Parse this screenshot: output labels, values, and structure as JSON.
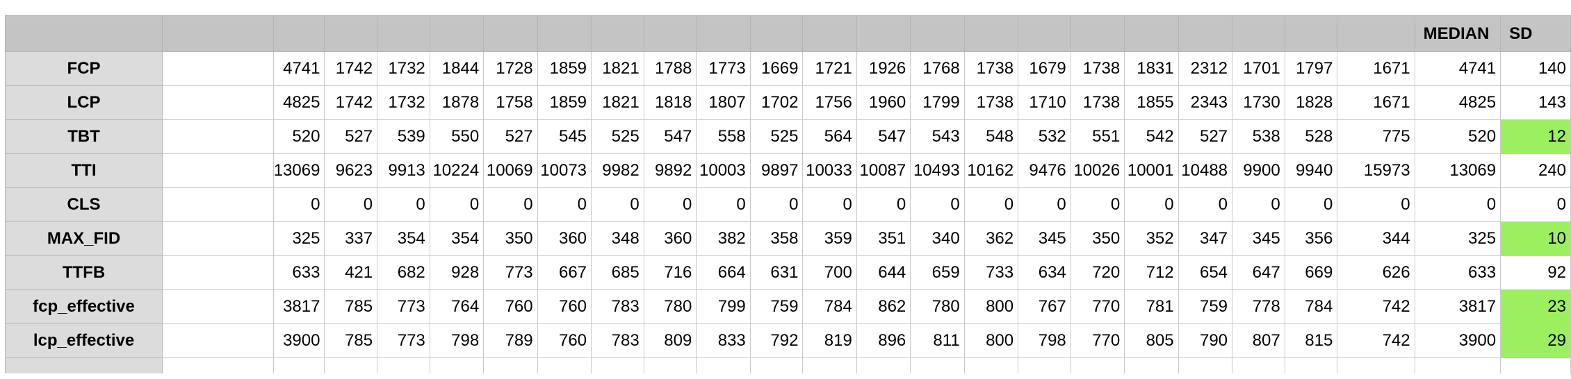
{
  "header": {
    "median_label": "MEDIAN",
    "sd_label": "SD"
  },
  "colors": {
    "header_bg": "#c4c4c4",
    "label_bg": "#dcdcdc",
    "highlight": "#9cf060",
    "grid": "#c8c8c8"
  },
  "rows": [
    {
      "label": "FCP",
      "values": [
        "4741",
        "1742",
        "1732",
        "1844",
        "1728",
        "1859",
        "1821",
        "1788",
        "1773",
        "1669",
        "1721",
        "1926",
        "1768",
        "1738",
        "1679",
        "1738",
        "1831",
        "2312",
        "1701",
        "1797",
        "1671"
      ],
      "median": "4741",
      "sd": "140",
      "sd_highlight": false
    },
    {
      "label": "LCP",
      "values": [
        "4825",
        "1742",
        "1732",
        "1878",
        "1758",
        "1859",
        "1821",
        "1818",
        "1807",
        "1702",
        "1756",
        "1960",
        "1799",
        "1738",
        "1710",
        "1738",
        "1855",
        "2343",
        "1730",
        "1828",
        "1671"
      ],
      "median": "4825",
      "sd": "143",
      "sd_highlight": false
    },
    {
      "label": "TBT",
      "values": [
        "520",
        "527",
        "539",
        "550",
        "527",
        "545",
        "525",
        "547",
        "558",
        "525",
        "564",
        "547",
        "543",
        "548",
        "532",
        "551",
        "542",
        "527",
        "538",
        "528",
        "775"
      ],
      "median": "520",
      "sd": "12",
      "sd_highlight": true
    },
    {
      "label": "TTI",
      "values": [
        "13069",
        "9623",
        "9913",
        "10224",
        "10069",
        "10073",
        "9982",
        "9892",
        "10003",
        "9897",
        "10033",
        "10087",
        "10493",
        "10162",
        "9476",
        "10026",
        "10001",
        "10488",
        "9900",
        "9940",
        "15973"
      ],
      "median": "13069",
      "sd": "240",
      "sd_highlight": false
    },
    {
      "label": "CLS",
      "values": [
        "0",
        "0",
        "0",
        "0",
        "0",
        "0",
        "0",
        "0",
        "0",
        "0",
        "0",
        "0",
        "0",
        "0",
        "0",
        "0",
        "0",
        "0",
        "0",
        "0",
        "0"
      ],
      "median": "0",
      "sd": "0",
      "sd_highlight": false
    },
    {
      "label": "MAX_FID",
      "values": [
        "325",
        "337",
        "354",
        "354",
        "350",
        "360",
        "348",
        "360",
        "382",
        "358",
        "359",
        "351",
        "340",
        "362",
        "345",
        "350",
        "352",
        "347",
        "345",
        "356",
        "344"
      ],
      "median": "325",
      "sd": "10",
      "sd_highlight": true
    },
    {
      "label": "TTFB",
      "values": [
        "633",
        "421",
        "682",
        "928",
        "773",
        "667",
        "685",
        "716",
        "664",
        "631",
        "700",
        "644",
        "659",
        "733",
        "634",
        "720",
        "712",
        "654",
        "647",
        "669",
        "626"
      ],
      "median": "633",
      "sd": "92",
      "sd_highlight": false
    },
    {
      "label": "fcp_effective",
      "values": [
        "3817",
        "785",
        "773",
        "764",
        "760",
        "760",
        "783",
        "780",
        "799",
        "759",
        "784",
        "862",
        "780",
        "800",
        "767",
        "770",
        "781",
        "759",
        "778",
        "784",
        "742"
      ],
      "median": "3817",
      "sd": "23",
      "sd_highlight": true
    },
    {
      "label": "lcp_effective",
      "values": [
        "3900",
        "785",
        "773",
        "798",
        "789",
        "760",
        "783",
        "809",
        "833",
        "792",
        "819",
        "896",
        "811",
        "800",
        "798",
        "770",
        "805",
        "790",
        "807",
        "815",
        "742"
      ],
      "median": "3900",
      "sd": "29",
      "sd_highlight": true
    }
  ]
}
